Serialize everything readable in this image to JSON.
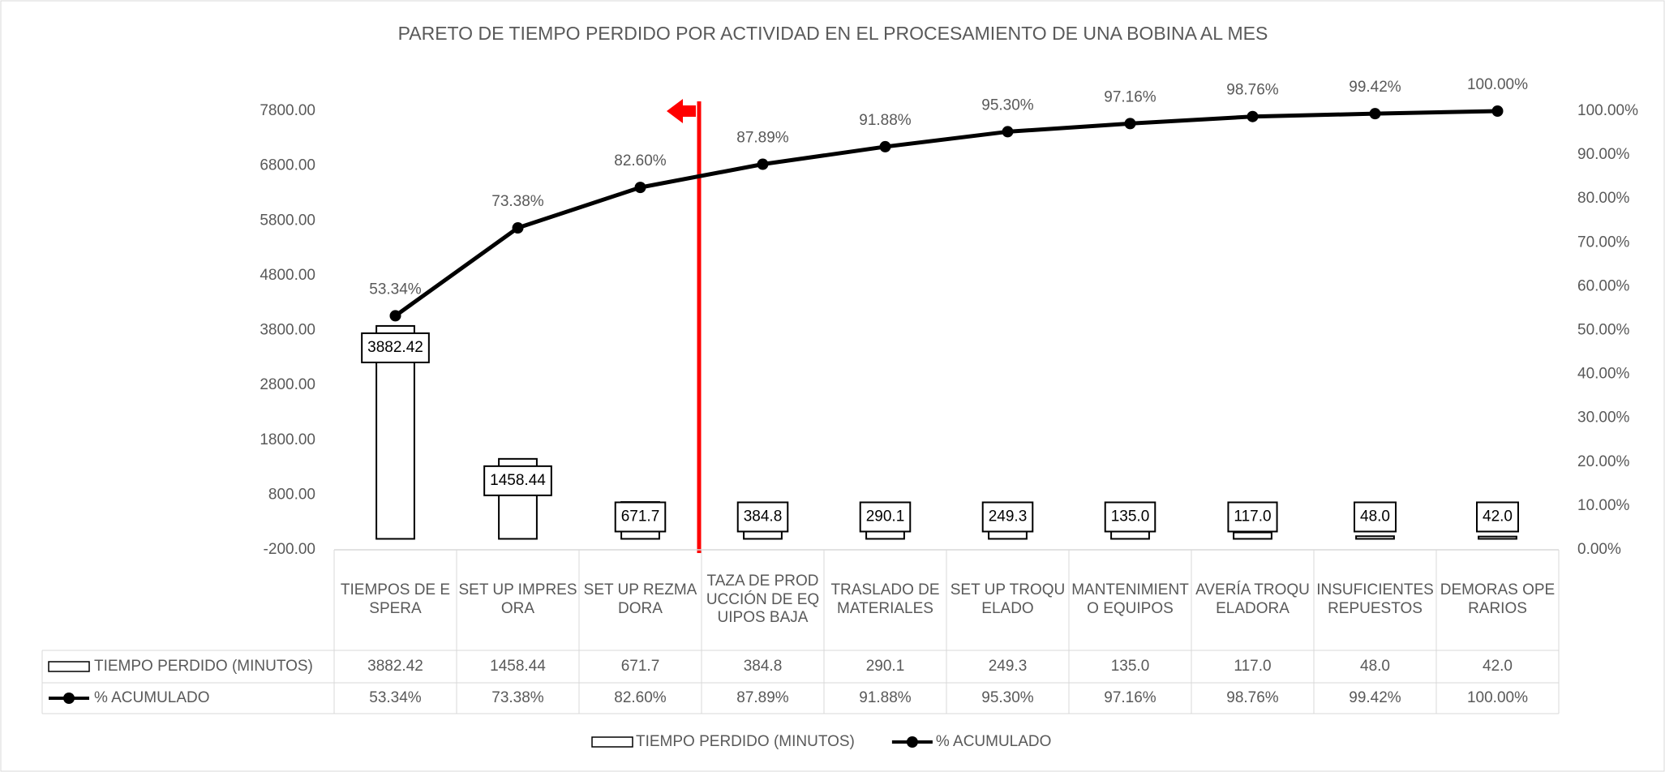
{
  "chart_data": {
    "type": "bar",
    "title": "PARETO DE TIEMPO PERDIDO POR ACTIVIDAD EN EL PROCESAMIENTO DE UNA BOBINA AL MES",
    "categories": [
      "TIEMPOS DE ESPERA",
      "SET UP IMPRESORA",
      "SET UP REZMADORA",
      "TAZA DE PRODUCCIÓN DE EQUIPOS BAJA",
      "TRASLADO DE MATERIALES",
      "SET UP TROQUELADO",
      "MANTENIMIENTO EQUIPOS",
      "AVERÍA TROQUELADORA",
      "INSUFICIENTES REPUESTOS",
      "DEMORAS OPERARIOS"
    ],
    "series": [
      {
        "name": "TIEMPO PERDIDO (MINUTOS)",
        "type": "bar",
        "color": "#000000",
        "values": [
          3882.42,
          1458.44,
          671.7,
          384.8,
          290.1,
          249.3,
          135,
          117,
          48,
          42
        ],
        "value_labels": [
          "3882.42",
          "1458.44",
          "671.7",
          "384.8",
          "290.1",
          "249.3",
          "135.0",
          "117.0",
          "48.0",
          "42.0"
        ]
      },
      {
        "name": "% ACUMULADO",
        "type": "line",
        "axis": "y2",
        "color": "#000000",
        "values": [
          53.34,
          73.38,
          82.6,
          87.89,
          91.88,
          95.3,
          97.16,
          98.76,
          99.42,
          100
        ],
        "value_labels": [
          "53.34%",
          "73.38%",
          "82.60%",
          "87.89%",
          "91.88%",
          "95.30%",
          "97.16%",
          "98.76%",
          "99.42%",
          "100.00%"
        ]
      }
    ],
    "ylim": [
      -200,
      7800
    ],
    "yticks": [
      {
        "value": -200,
        "label": "-200.00"
      },
      {
        "value": 800,
        "label": "800.00"
      },
      {
        "value": 1800,
        "label": "1800.00"
      },
      {
        "value": 2800,
        "label": "2800.00"
      },
      {
        "value": 3800,
        "label": "3800.00"
      },
      {
        "value": 4800,
        "label": "4800.00"
      },
      {
        "value": 5800,
        "label": "5800.00"
      },
      {
        "value": 6800,
        "label": "6800.00"
      },
      {
        "value": 7800,
        "label": "7800.00"
      }
    ],
    "y2lim": [
      0,
      100
    ],
    "y2ticks": [
      {
        "value": 0,
        "label": "0.00%"
      },
      {
        "value": 10,
        "label": "10.00%"
      },
      {
        "value": 20,
        "label": "20.00%"
      },
      {
        "value": 30,
        "label": "30.00%"
      },
      {
        "value": 40,
        "label": "40.00%"
      },
      {
        "value": 50,
        "label": "50.00%"
      },
      {
        "value": 60,
        "label": "60.00%"
      },
      {
        "value": 70,
        "label": "70.00%"
      },
      {
        "value": 80,
        "label": "80.00%"
      },
      {
        "value": 90,
        "label": "90.00%"
      },
      {
        "value": 100,
        "label": "100.00%"
      }
    ],
    "grid": false,
    "legend": "bottom"
  }
}
